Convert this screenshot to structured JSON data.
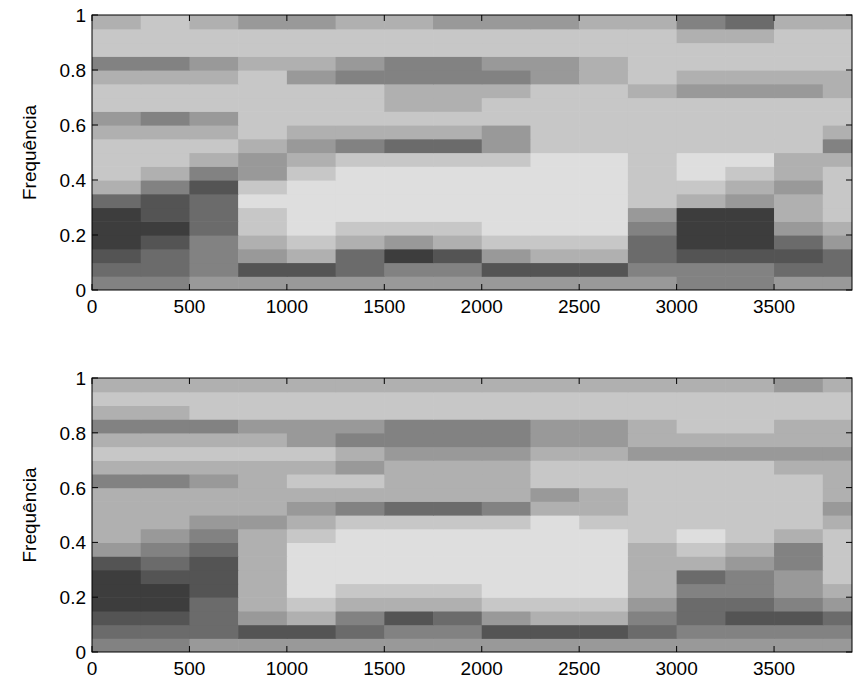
{
  "chart_data": [
    {
      "type": "heatmap",
      "ylabel": "Frequência",
      "xlim": [
        0,
        3900
      ],
      "ylim": [
        0,
        1
      ],
      "xticks": [
        0,
        500,
        1000,
        1500,
        2000,
        2500,
        3000,
        3500
      ],
      "yticks": [
        0,
        0.2,
        0.4,
        0.6,
        0.8,
        1
      ],
      "x_bins": [
        0,
        250,
        500,
        750,
        1000,
        1250,
        1500,
        1750,
        2000,
        2250,
        2500,
        2750,
        3000,
        3250,
        3500,
        3750,
        3900
      ],
      "y_bins": [
        0,
        0.05,
        0.1,
        0.15,
        0.2,
        0.25,
        0.3,
        0.35,
        0.4,
        0.45,
        0.5,
        0.55,
        0.6,
        0.65,
        0.7,
        0.75,
        0.8,
        0.85,
        0.9,
        0.95,
        1
      ],
      "cells": [
        [
          5,
          5,
          4,
          4,
          4,
          4,
          4,
          4,
          4,
          4,
          4,
          4,
          5,
          5,
          4,
          4
        ],
        [
          6,
          6,
          5,
          7,
          7,
          6,
          5,
          5,
          7,
          7,
          7,
          5,
          5,
          5,
          6,
          6
        ],
        [
          7,
          6,
          5,
          4,
          3,
          6,
          8,
          7,
          4,
          3,
          3,
          6,
          7,
          7,
          7,
          6
        ],
        [
          8,
          7,
          5,
          3,
          2,
          3,
          4,
          3,
          2,
          2,
          2,
          6,
          8,
          8,
          6,
          4
        ],
        [
          8,
          8,
          6,
          2,
          1,
          2,
          2,
          2,
          1,
          1,
          1,
          5,
          8,
          8,
          4,
          3
        ],
        [
          8,
          7,
          6,
          2,
          1,
          1,
          1,
          1,
          1,
          1,
          1,
          4,
          8,
          8,
          3,
          2
        ],
        [
          6,
          7,
          6,
          1,
          1,
          1,
          1,
          1,
          1,
          1,
          1,
          2,
          3,
          4,
          3,
          2
        ],
        [
          3,
          5,
          7,
          2,
          1,
          1,
          1,
          1,
          1,
          1,
          1,
          2,
          2,
          3,
          4,
          2
        ],
        [
          2,
          3,
          5,
          4,
          2,
          1,
          1,
          1,
          1,
          1,
          1,
          2,
          1,
          2,
          3,
          2
        ],
        [
          2,
          2,
          3,
          4,
          3,
          2,
          2,
          2,
          2,
          1,
          1,
          2,
          1,
          1,
          3,
          3
        ],
        [
          2,
          2,
          2,
          3,
          4,
          5,
          6,
          6,
          4,
          2,
          2,
          2,
          2,
          2,
          2,
          5
        ],
        [
          3,
          3,
          3,
          2,
          3,
          3,
          3,
          3,
          4,
          2,
          2,
          2,
          2,
          2,
          2,
          3
        ],
        [
          4,
          5,
          4,
          2,
          2,
          2,
          2,
          2,
          2,
          2,
          2,
          2,
          2,
          2,
          2,
          2
        ],
        [
          2,
          2,
          2,
          2,
          2,
          2,
          3,
          3,
          2,
          2,
          2,
          2,
          2,
          2,
          2,
          2
        ],
        [
          2,
          2,
          2,
          2,
          2,
          2,
          3,
          3,
          3,
          2,
          2,
          3,
          4,
          4,
          4,
          3
        ],
        [
          3,
          3,
          3,
          2,
          4,
          5,
          5,
          5,
          5,
          4,
          3,
          2,
          3,
          3,
          3,
          3
        ],
        [
          5,
          5,
          4,
          3,
          3,
          4,
          5,
          5,
          4,
          4,
          3,
          2,
          2,
          2,
          2,
          2
        ],
        [
          2,
          2,
          2,
          2,
          2,
          2,
          2,
          2,
          2,
          2,
          2,
          2,
          2,
          2,
          2,
          2
        ],
        [
          2,
          2,
          2,
          2,
          2,
          2,
          2,
          2,
          2,
          2,
          2,
          2,
          3,
          3,
          2,
          2
        ],
        [
          3,
          2,
          3,
          4,
          4,
          3,
          3,
          4,
          4,
          4,
          3,
          3,
          5,
          6,
          3,
          3
        ]
      ]
    },
    {
      "type": "heatmap",
      "ylabel": "Frequência",
      "xlim": [
        0,
        3900
      ],
      "ylim": [
        0,
        1
      ],
      "xticks": [
        0,
        500,
        1000,
        1500,
        2000,
        2500,
        3000,
        3500
      ],
      "yticks": [
        0,
        0.2,
        0.4,
        0.6,
        0.8,
        1
      ],
      "x_bins": [
        0,
        250,
        500,
        750,
        1000,
        1250,
        1500,
        1750,
        2000,
        2250,
        2500,
        2750,
        3000,
        3250,
        3500,
        3750,
        3900
      ],
      "y_bins": [
        0,
        0.05,
        0.1,
        0.15,
        0.2,
        0.25,
        0.3,
        0.35,
        0.4,
        0.45,
        0.5,
        0.55,
        0.6,
        0.65,
        0.7,
        0.75,
        0.8,
        0.85,
        0.9,
        0.95,
        1
      ],
      "cells": [
        [
          5,
          5,
          4,
          4,
          4,
          4,
          4,
          4,
          4,
          4,
          4,
          4,
          4,
          4,
          4,
          4
        ],
        [
          6,
          6,
          6,
          7,
          7,
          6,
          5,
          5,
          7,
          7,
          7,
          6,
          5,
          5,
          5,
          5
        ],
        [
          7,
          7,
          6,
          4,
          3,
          5,
          7,
          6,
          4,
          3,
          3,
          5,
          6,
          7,
          7,
          6
        ],
        [
          8,
          8,
          6,
          3,
          2,
          3,
          3,
          3,
          2,
          2,
          2,
          4,
          6,
          6,
          5,
          4
        ],
        [
          8,
          8,
          7,
          3,
          1,
          2,
          2,
          2,
          1,
          1,
          1,
          3,
          5,
          5,
          4,
          3
        ],
        [
          8,
          7,
          7,
          3,
          1,
          1,
          1,
          1,
          1,
          1,
          1,
          3,
          6,
          5,
          4,
          2
        ],
        [
          7,
          6,
          7,
          3,
          1,
          1,
          1,
          1,
          1,
          1,
          1,
          3,
          3,
          4,
          5,
          2
        ],
        [
          4,
          5,
          6,
          3,
          1,
          1,
          1,
          1,
          1,
          1,
          1,
          3,
          2,
          3,
          5,
          2
        ],
        [
          3,
          4,
          5,
          3,
          2,
          1,
          1,
          1,
          1,
          1,
          1,
          2,
          1,
          2,
          3,
          2
        ],
        [
          3,
          3,
          4,
          4,
          3,
          2,
          2,
          2,
          2,
          1,
          2,
          2,
          2,
          2,
          2,
          3
        ],
        [
          3,
          3,
          3,
          3,
          4,
          5,
          6,
          6,
          5,
          3,
          3,
          2,
          2,
          2,
          2,
          4
        ],
        [
          3,
          3,
          3,
          3,
          3,
          3,
          3,
          3,
          3,
          4,
          3,
          2,
          2,
          2,
          2,
          3
        ],
        [
          5,
          5,
          4,
          3,
          2,
          2,
          3,
          3,
          3,
          2,
          2,
          2,
          2,
          2,
          2,
          3
        ],
        [
          3,
          3,
          3,
          3,
          3,
          4,
          3,
          3,
          3,
          2,
          2,
          2,
          2,
          2,
          3,
          3
        ],
        [
          2,
          2,
          2,
          2,
          2,
          3,
          4,
          4,
          4,
          3,
          3,
          4,
          4,
          4,
          4,
          4
        ],
        [
          3,
          3,
          3,
          3,
          4,
          5,
          5,
          5,
          5,
          4,
          4,
          3,
          3,
          3,
          3,
          3
        ],
        [
          5,
          5,
          5,
          4,
          4,
          4,
          5,
          5,
          5,
          4,
          4,
          3,
          2,
          2,
          3,
          3
        ],
        [
          3,
          3,
          2,
          2,
          2,
          2,
          2,
          2,
          2,
          2,
          2,
          2,
          2,
          2,
          2,
          2
        ],
        [
          2,
          2,
          2,
          2,
          2,
          2,
          2,
          2,
          2,
          2,
          2,
          2,
          2,
          2,
          2,
          2
        ],
        [
          3,
          3,
          3,
          3,
          3,
          3,
          3,
          3,
          3,
          3,
          3,
          3,
          3,
          3,
          4,
          3
        ]
      ]
    }
  ]
}
